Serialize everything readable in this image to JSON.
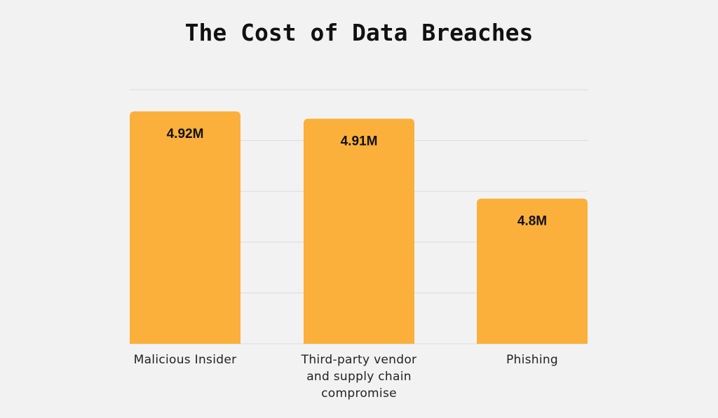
{
  "chart_data": {
    "type": "bar",
    "title": "The Cost of Data Breaches",
    "categories": [
      "Malicious Insider",
      "Third-party vendor and supply chain compromise",
      "Phishing"
    ],
    "values": [
      4.92,
      4.91,
      4.8
    ],
    "value_labels": [
      "4.92M",
      "4.91M",
      "4.8M"
    ],
    "color": "#fbb03b",
    "ylim": [
      4.6,
      4.95
    ],
    "grid": true
  }
}
